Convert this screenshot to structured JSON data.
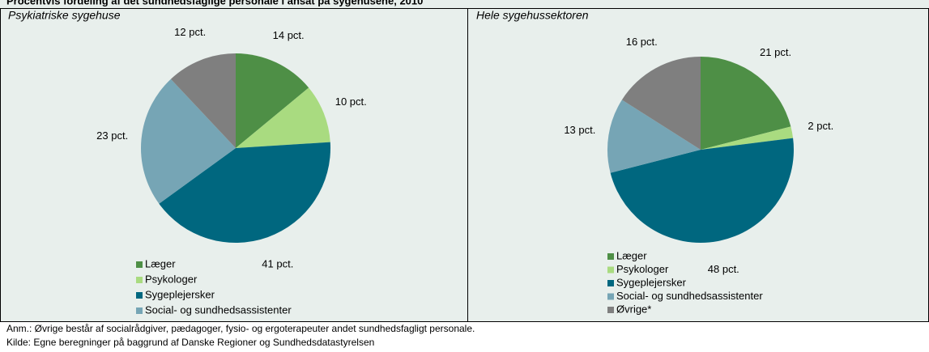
{
  "title": "Procentvis fordeling af det sundhedsfaglige personale i ansat på sygehusene, 2010",
  "notes": [
    "Anm.: Øvrige består af socialrådgiver, pædagoger, fysio- og ergoterapeuter andet sundhedsfagligt personale.",
    "Kilde: Egne beregninger på baggrund af Danske Regioner og Sundhedsdatastyrelsen"
  ],
  "chart_data": [
    {
      "type": "pie",
      "subtitle": "Psykiatriske sygehuse",
      "categories": [
        "Læger",
        "Psykologer",
        "Sygeplejersker",
        "Social- og sundhedsassistenter",
        null
      ],
      "values": [
        14,
        10,
        41,
        23,
        12
      ],
      "value_labels": [
        "14 pct.",
        "10 pct.",
        "41 pct.",
        "23 pct.",
        "12 pct."
      ],
      "colors": [
        "#4e8f46",
        "#a9db80",
        "#00677f",
        "#76a5b5",
        "#7f7f7f"
      ]
    },
    {
      "type": "pie",
      "subtitle": "Hele sygehussektoren",
      "categories": [
        "Læger",
        "Psykologer",
        "Sygeplejersker",
        "Social- og sundhedsassistenter",
        "Øvrige*"
      ],
      "values": [
        21,
        2,
        48,
        13,
        16
      ],
      "value_labels": [
        "21 pct.",
        "2 pct.",
        "48 pct.",
        "13 pct.",
        "16 pct."
      ],
      "colors": [
        "#4e8f46",
        "#a9db80",
        "#00677f",
        "#76a5b5",
        "#7f7f7f"
      ]
    }
  ]
}
